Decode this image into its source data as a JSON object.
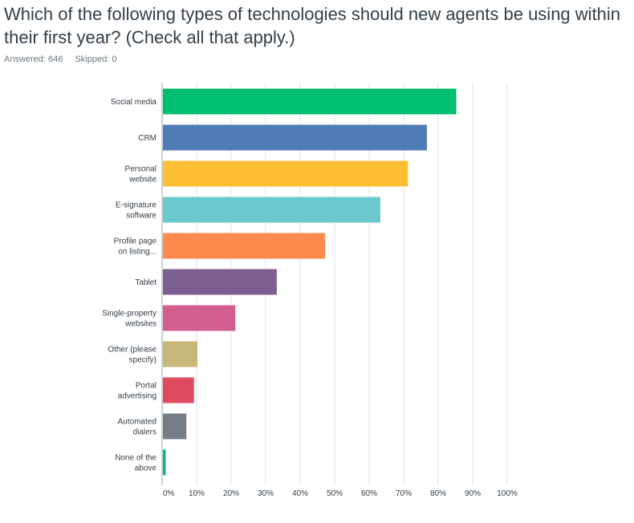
{
  "question": {
    "title": "Which of the following types of technologies should new agents be using within their first year? (Check all that apply.)",
    "answered_label": "Answered: 646",
    "skipped_label": "Skipped: 0"
  },
  "colors": {
    "gridline": "#e3e3e3",
    "axis": "#9aa5ab"
  },
  "chart_data": {
    "type": "bar",
    "orientation": "horizontal",
    "categories": [
      [
        "Social media"
      ],
      [
        "CRM"
      ],
      [
        "Personal",
        "website"
      ],
      [
        "E-signature",
        "software"
      ],
      [
        "Profile page",
        "on listing..."
      ],
      [
        "Tablet"
      ],
      [
        "Single-property",
        "websites"
      ],
      [
        "Other (please",
        "specify)"
      ],
      [
        "Portal",
        "advertising"
      ],
      [
        "Automated",
        "dialers"
      ],
      [
        "None of the",
        "above"
      ]
    ],
    "values": [
      85,
      76.5,
      71,
      63,
      47,
      33,
      21,
      10,
      9,
      6.8,
      0.8
    ],
    "colors": [
      "#00bf6f",
      "#507cb6",
      "#fcbe32",
      "#6bc8cd",
      "#ff8b4f",
      "#7d5e90",
      "#d25f90",
      "#c7b879",
      "#de4b5e",
      "#757d86",
      "#00bf6f"
    ],
    "xlim": [
      0,
      100
    ],
    "xticks": [
      "0%",
      "10%",
      "20%",
      "30%",
      "40%",
      "50%",
      "60%",
      "70%",
      "80%",
      "90%",
      "100%"
    ],
    "grid": true
  }
}
